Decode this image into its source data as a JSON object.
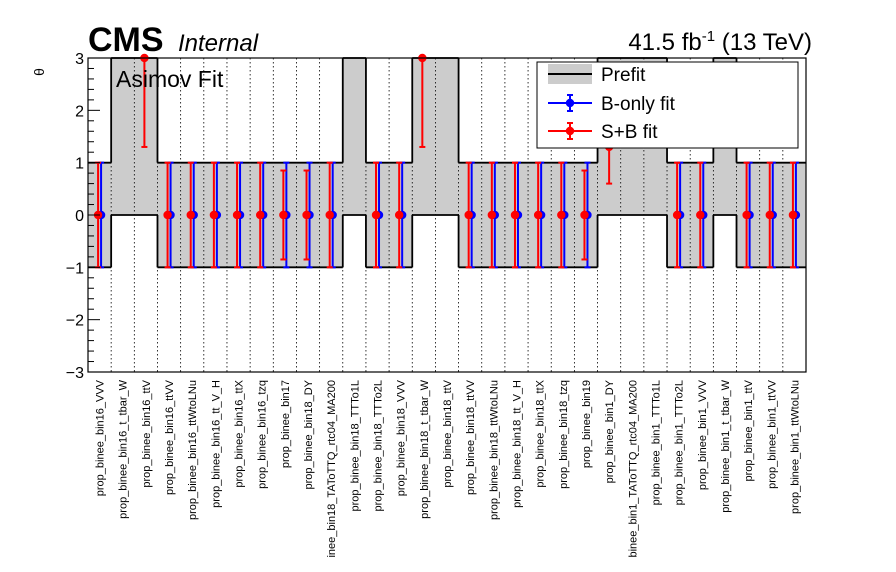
{
  "header": {
    "experiment": "CMS",
    "status": "Internal",
    "lumi_prefix": "41.5 fb",
    "lumi_exponent": "-1",
    "lumi_suffix": " (13 TeV)",
    "fit_label": "Asimov Fit"
  },
  "chart_data": {
    "type": "scatter",
    "ylabel": "θ",
    "ylim": [
      -3,
      3
    ],
    "yticks": [
      -3,
      -2,
      -1,
      0,
      1,
      2,
      3
    ],
    "legend_position": "top-right",
    "categories": [
      "prop_binee_bin16_VVV",
      "prop_binee_bin16_t_tbar_W",
      "prop_binee_bin16_ttV",
      "prop_binee_bin16_ttVV",
      "prop_binee_bin16_ttWtoLNu",
      "prop_binee_bin16_tt_V_H",
      "prop_binee_bin16_ttX",
      "prop_binee_bin16_tzq",
      "prop_binee_bin17",
      "prop_binee_bin18_DY",
      "inee_bin18_TAToTTQ_rtc04_MA200",
      "prop_binee_bin18_TTTo1L",
      "prop_binee_bin18_TTTo2L",
      "prop_binee_bin18_VVV",
      "prop_binee_bin18_t_tbar_W",
      "prop_binee_bin18_ttV",
      "prop_binee_bin18_ttVV",
      "prop_binee_bin18_ttWtoLNu",
      "prop_binee_bin18_tt_V_H",
      "prop_binee_bin18_ttX",
      "prop_binee_bin18_tzq",
      "prop_binee_bin19",
      "prop_binee_bin1_DY",
      "binee_bin1_TAToTTQ_rtc04_MA200",
      "prop_binee_bin1_TTTo1L",
      "prop_binee_bin1_TTTo2L",
      "prop_binee_bin1_VVV",
      "prop_binee_bin1_t_tbar_W",
      "prop_binee_bin1_ttV",
      "prop_binee_bin1_ttVV",
      "prop_binee_bin1_ttWtoLNu"
    ],
    "prefit": [
      {
        "lo": -1,
        "hi": 1
      },
      {
        "lo": 0,
        "hi": 3
      },
      {
        "lo": 0,
        "hi": 3
      },
      {
        "lo": -1,
        "hi": 1
      },
      {
        "lo": -1,
        "hi": 1
      },
      {
        "lo": -1,
        "hi": 1
      },
      {
        "lo": -1,
        "hi": 1
      },
      {
        "lo": -1,
        "hi": 1
      },
      {
        "lo": -1,
        "hi": 1
      },
      {
        "lo": -1,
        "hi": 1
      },
      {
        "lo": -1,
        "hi": 1
      },
      {
        "lo": 0,
        "hi": 3
      },
      {
        "lo": -1,
        "hi": 1
      },
      {
        "lo": -1,
        "hi": 1
      },
      {
        "lo": 0,
        "hi": 3
      },
      {
        "lo": 0,
        "hi": 3
      },
      {
        "lo": -1,
        "hi": 1
      },
      {
        "lo": -1,
        "hi": 1
      },
      {
        "lo": -1,
        "hi": 1
      },
      {
        "lo": -1,
        "hi": 1
      },
      {
        "lo": -1,
        "hi": 1
      },
      {
        "lo": -1,
        "hi": 1
      },
      {
        "lo": 0,
        "hi": 3
      },
      {
        "lo": 0,
        "hi": 3
      },
      {
        "lo": 0,
        "hi": 3
      },
      {
        "lo": -1,
        "hi": 1
      },
      {
        "lo": -1,
        "hi": 1
      },
      {
        "lo": 0,
        "hi": 3
      },
      {
        "lo": -1,
        "hi": 1
      },
      {
        "lo": -1,
        "hi": 1
      },
      {
        "lo": -1,
        "hi": 1
      }
    ],
    "series": [
      {
        "name": "B-only fit",
        "color": "#0000ff",
        "values": [
          0,
          null,
          null,
          0,
          0,
          0,
          0,
          0,
          0,
          0,
          0,
          null,
          0,
          0,
          null,
          null,
          0,
          0,
          0,
          0,
          0,
          0,
          null,
          null,
          null,
          0,
          0,
          null,
          0,
          0,
          0
        ],
        "err_lo": [
          1,
          null,
          null,
          1,
          1,
          1,
          1,
          1,
          1,
          1,
          1,
          null,
          1,
          1,
          null,
          null,
          1,
          1,
          1,
          1,
          1,
          1,
          null,
          null,
          null,
          1,
          1,
          null,
          1,
          1,
          1
        ],
        "err_hi": [
          1,
          null,
          null,
          1,
          1,
          1,
          1,
          1,
          1,
          1,
          1,
          null,
          1,
          1,
          null,
          null,
          1,
          1,
          1,
          1,
          1,
          1,
          null,
          null,
          null,
          1,
          1,
          null,
          1,
          1,
          1
        ]
      },
      {
        "name": "S+B fit",
        "color": "#ff0000",
        "values": [
          0,
          null,
          3,
          0,
          0,
          0,
          0,
          0,
          0,
          0,
          0,
          null,
          0,
          0,
          3,
          null,
          0,
          0,
          0,
          0,
          0,
          0,
          null,
          null,
          null,
          0,
          0,
          null,
          0,
          0,
          0
        ],
        "err_lo": [
          1,
          null,
          1.7,
          1,
          1,
          1,
          1,
          1,
          0.85,
          0.85,
          1,
          null,
          1,
          1,
          1.7,
          null,
          1,
          1,
          1,
          1,
          1,
          0.85,
          null,
          null,
          null,
          1,
          1,
          null,
          1,
          1,
          1
        ],
        "err_hi": [
          1,
          null,
          0,
          1,
          1,
          1,
          1,
          1,
          0.85,
          0.85,
          1,
          null,
          1,
          1,
          0,
          null,
          1,
          1,
          1,
          1,
          1,
          0.85,
          null,
          null,
          null,
          1,
          1,
          null,
          1,
          1,
          1
        ]
      }
    ],
    "extra_markers": [
      {
        "index": 22,
        "value": 1.3,
        "err_lo": 0.7,
        "err_hi": 0.3,
        "color": "#ff0000"
      }
    ],
    "legend": [
      {
        "label": "Prefit",
        "kind": "band"
      },
      {
        "label": "B-only fit",
        "kind": "marker",
        "color": "#0000ff"
      },
      {
        "label": "S+B fit",
        "kind": "marker",
        "color": "#ff0000"
      }
    ]
  }
}
